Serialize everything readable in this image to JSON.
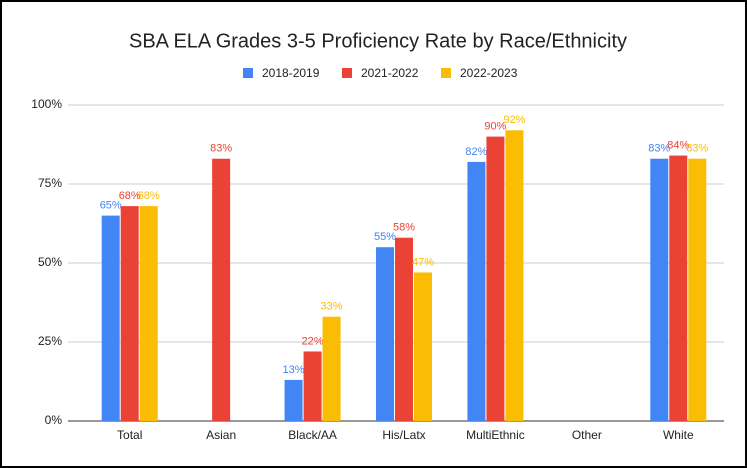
{
  "chart_data": {
    "type": "bar",
    "title": "SBA ELA Grades 3-5 Proficiency Rate by Race/Ethnicity",
    "categories": [
      "Total",
      "Asian",
      "Black/AA",
      "His/Latx",
      "MultiEthnic",
      "Other",
      "White"
    ],
    "series": [
      {
        "name": "2018-2019",
        "color": "#4285f4",
        "values": [
          65,
          null,
          13,
          55,
          82,
          null,
          83
        ],
        "value_labels": [
          "65%",
          null,
          "13%",
          "55%",
          "82%",
          null,
          "83%"
        ]
      },
      {
        "name": "2021-2022",
        "color": "#ea4335",
        "values": [
          68,
          83,
          22,
          58,
          90,
          null,
          84
        ],
        "value_labels": [
          "68%",
          "83%",
          "22%",
          "58%",
          "90%",
          null,
          "84%"
        ]
      },
      {
        "name": "2022-2023",
        "color": "#fbbc04",
        "values": [
          68,
          null,
          33,
          47,
          92,
          null,
          83
        ],
        "value_labels": [
          "68%",
          null,
          "33%",
          "47%",
          "92%",
          null,
          "83%"
        ]
      }
    ],
    "ylim": [
      0,
      100
    ],
    "yticks": [
      {
        "value": 0,
        "label": "0%"
      },
      {
        "value": 25,
        "label": "25%"
      },
      {
        "value": 50,
        "label": "50%"
      },
      {
        "value": 75,
        "label": "75%"
      },
      {
        "value": 100,
        "label": "100%"
      }
    ],
    "grid": true,
    "legend": "top"
  }
}
